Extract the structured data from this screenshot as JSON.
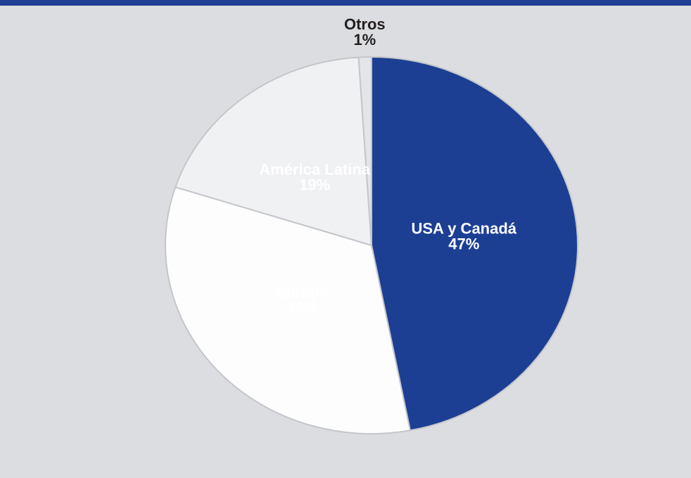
{
  "chart_data": {
    "type": "pie",
    "categories": [
      "USA y Canadá",
      "Europa",
      "América Latina",
      "Otros"
    ],
    "values": [
      47,
      33,
      19,
      1
    ],
    "value_labels": [
      "47%",
      "33%",
      "19%",
      "1%"
    ],
    "colors": [
      "#1c3f94",
      "#fdfdfd",
      "#f0f1f3",
      "#e3e5e9"
    ]
  }
}
